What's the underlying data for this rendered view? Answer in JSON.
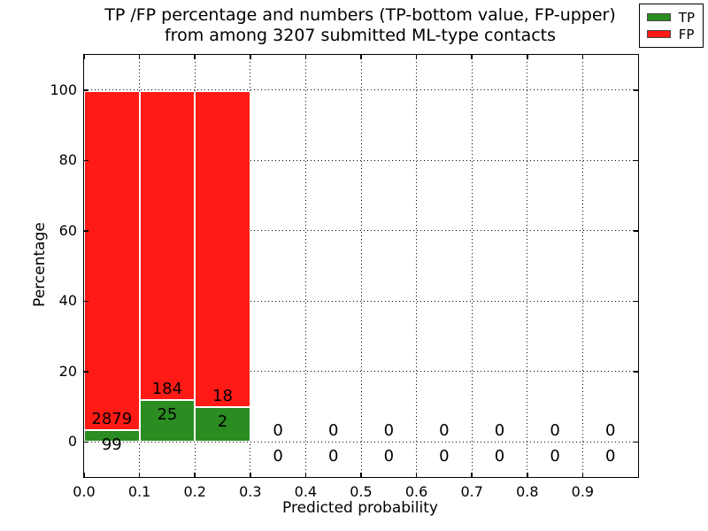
{
  "chart_data": {
    "type": "bar",
    "stacked": true,
    "title_lines": [
      "TP /FP percentage and numbers (TP-bottom value, FP-upper)",
      "from among 3207 submitted ML-type contacts"
    ],
    "xlabel": "Predicted probability",
    "ylabel": "Percentage",
    "xlim": [
      0.0,
      1.0
    ],
    "ylim": [
      -10,
      110
    ],
    "grid": true,
    "bin_width": 0.1,
    "x_tick_values": [
      0.0,
      0.1,
      0.2,
      0.3,
      0.4,
      0.5,
      0.6,
      0.7,
      0.8,
      0.9
    ],
    "x_tick_labels": [
      "0.0",
      "0.1",
      "0.2",
      "0.3",
      "0.4",
      "0.5",
      "0.6",
      "0.7",
      "0.8",
      "0.9"
    ],
    "y_tick_values": [
      0,
      20,
      40,
      60,
      80,
      100
    ],
    "y_tick_labels": [
      "0",
      "20",
      "40",
      "60",
      "80",
      "100"
    ],
    "total_contacts_in_title": "3207",
    "colors": {
      "tp": "#2a8c21",
      "fp": "#ff1a15"
    },
    "legend": {
      "position": "upper right",
      "entries": [
        {
          "label": "TP",
          "color": "#2a8c21"
        },
        {
          "label": "FP",
          "color": "#ff1a15"
        }
      ]
    },
    "bins": [
      {
        "x_start": 0.0,
        "tp_count": "99",
        "fp_count": "2879",
        "tp_pct": 3.3,
        "fp_pct": 96.7
      },
      {
        "x_start": 0.1,
        "tp_count": "25",
        "fp_count": "184",
        "tp_pct": 12.0,
        "fp_pct": 88.0
      },
      {
        "x_start": 0.2,
        "tp_count": "2",
        "fp_count": "18",
        "tp_pct": 10.0,
        "fp_pct": 90.0
      },
      {
        "x_start": 0.3,
        "tp_count": "0",
        "fp_count": "0",
        "tp_pct": 0,
        "fp_pct": 0
      },
      {
        "x_start": 0.4,
        "tp_count": "0",
        "fp_count": "0",
        "tp_pct": 0,
        "fp_pct": 0
      },
      {
        "x_start": 0.5,
        "tp_count": "0",
        "fp_count": "0",
        "tp_pct": 0,
        "fp_pct": 0
      },
      {
        "x_start": 0.6,
        "tp_count": "0",
        "fp_count": "0",
        "tp_pct": 0,
        "fp_pct": 0
      },
      {
        "x_start": 0.7,
        "tp_count": "0",
        "fp_count": "0",
        "tp_pct": 0,
        "fp_pct": 0
      },
      {
        "x_start": 0.8,
        "tp_count": "0",
        "fp_count": "0",
        "tp_pct": 0,
        "fp_pct": 0
      },
      {
        "x_start": 0.9,
        "tp_count": "0",
        "fp_count": "0",
        "tp_pct": 0,
        "fp_pct": 0
      }
    ]
  }
}
